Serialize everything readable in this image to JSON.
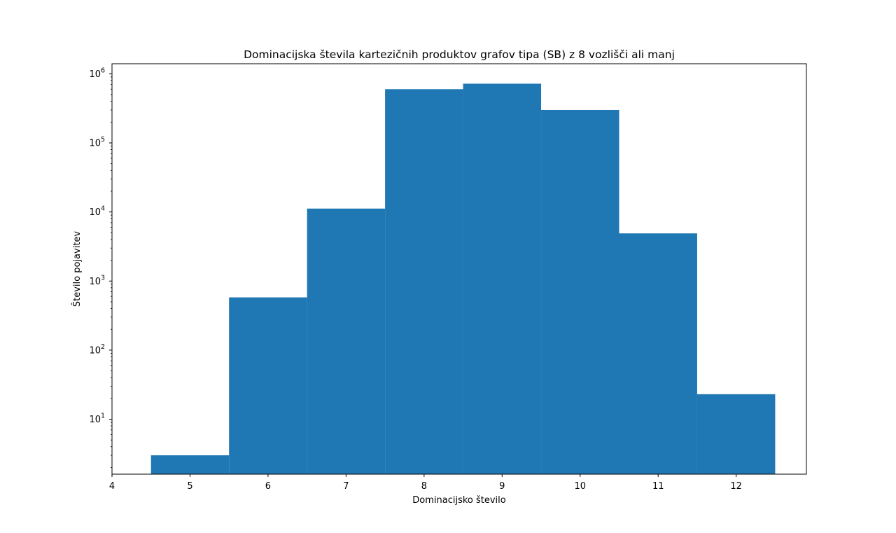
{
  "chart_data": {
    "type": "bar",
    "title": "Dominacijska števila kartezičnih produktov grafov tipa (SB) z 8 vozlišči ali manj",
    "xlabel": "Dominacijsko število",
    "ylabel": "Število pojavitev",
    "yscale": "log",
    "xlim": [
      4,
      12.9
    ],
    "ylim": [
      1.6,
      1400000
    ],
    "bar_color": "#1f77b4",
    "categories": [
      5,
      6,
      7,
      8,
      9,
      10,
      11,
      12
    ],
    "values": [
      3,
      580,
      11200,
      600000,
      720000,
      300000,
      4900,
      23
    ],
    "x_ticks": [
      "4",
      "5",
      "6",
      "7",
      "8",
      "9",
      "10",
      "11",
      "12"
    ],
    "y_ticks": [
      {
        "base": "10",
        "exp": "1"
      },
      {
        "base": "10",
        "exp": "2"
      },
      {
        "base": "10",
        "exp": "3"
      },
      {
        "base": "10",
        "exp": "4"
      },
      {
        "base": "10",
        "exp": "5"
      },
      {
        "base": "10",
        "exp": "6"
      }
    ],
    "grid": false,
    "legend": "none"
  }
}
